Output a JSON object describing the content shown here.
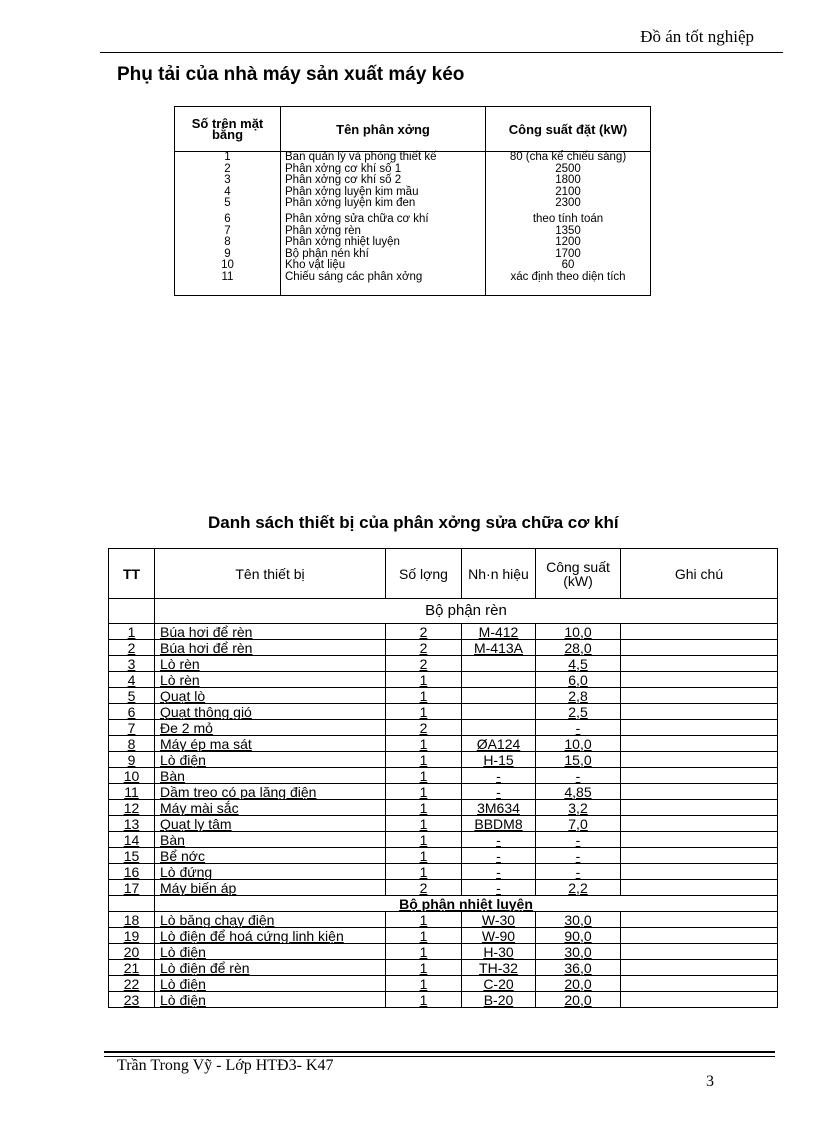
{
  "header": {
    "text": "Đồ án tốt nghiệp"
  },
  "section1": {
    "title": "Phụ tải của nhà máy sản xuất máy kéo",
    "columns": [
      "Số trên mặt bằng",
      "Tên phân xởng",
      "Công suất đặt (kW)"
    ],
    "rows": [
      [
        "1",
        "Ban quản lý và phòng thiết kế",
        "80 (cha kể chiếu sáng)"
      ],
      [
        "2",
        "Phân xởng cơ khí số 1",
        "2500"
      ],
      [
        "3",
        "Phân xởng cơ khí số 2",
        "1800"
      ],
      [
        "4",
        "Phân xởng luyện kim mầu",
        "2100"
      ],
      [
        "5",
        "Phân xởng luyện kim đen",
        "2300"
      ],
      [
        "6",
        "Phân xởng sửa chữa cơ khí",
        "theo tính toán"
      ],
      [
        "7",
        "Phân xởng rèn",
        "1350"
      ],
      [
        "8",
        "Phân xởng nhiệt luyện",
        "1200"
      ],
      [
        "9",
        "Bộ phận nén khí",
        "1700"
      ],
      [
        "10",
        "Kho vật liệu",
        "60"
      ],
      [
        "11",
        "Chiếu sáng các phân xởng",
        "xác định theo diện tích"
      ]
    ]
  },
  "section2": {
    "title": "Danh sách thiết bị của phân xởng sửa chữa cơ khí",
    "columns": [
      "TT",
      "Tên thiết bị",
      "Số lợng",
      "Nh·n hiệu",
      "Công suất (kW)",
      "Ghi chú"
    ],
    "groups": [
      {
        "name": "Bộ phận rèn",
        "rows": [
          [
            "1",
            "Búa hơi để rèn",
            "2",
            "M-412",
            "10,0",
            ""
          ],
          [
            "2",
            "Búa hơi để rèn",
            "2",
            "M-413A",
            "28,0",
            ""
          ],
          [
            "3",
            "Lò rèn",
            "2",
            "",
            "4,5",
            ""
          ],
          [
            "4",
            "Lò rèn",
            "1",
            "",
            "6,0",
            ""
          ],
          [
            "5",
            "Quạt lò",
            "1",
            "",
            "2,8",
            ""
          ],
          [
            "6",
            "Quạt thông gió",
            "1",
            "",
            "2,5",
            ""
          ],
          [
            "7",
            "Đe 2 mỏ",
            "2",
            "",
            "-",
            ""
          ],
          [
            "8",
            "Máy ép ma sát",
            "1",
            "ØA124",
            "10,0",
            ""
          ],
          [
            "9",
            "Lò điện",
            "1",
            "H-15",
            "15,0",
            ""
          ],
          [
            "10",
            "Bàn",
            "1",
            "-",
            "-",
            ""
          ],
          [
            "11",
            "Dầm treo có pa lăng điện",
            "1",
            "-",
            "4,85",
            ""
          ],
          [
            "12",
            "Máy mài sắc",
            "1",
            "3M634",
            "3,2",
            ""
          ],
          [
            "13",
            "Quạt ly tâm",
            "1",
            "BBDM8",
            "7,0",
            ""
          ],
          [
            "14",
            "Bàn",
            "1",
            "-",
            "-",
            ""
          ],
          [
            "15",
            "Bể nớc",
            "1",
            "-",
            "-",
            ""
          ],
          [
            "16",
            "Lò đứng",
            "1",
            "-",
            "-",
            ""
          ],
          [
            "17",
            "Máy biến áp",
            "2",
            "-",
            "2,2",
            ""
          ]
        ]
      },
      {
        "name": "Bộ phận nhiệt luyện",
        "rows": [
          [
            "18",
            "Lò băng chạy điện",
            "1",
            "W-30",
            "30,0",
            ""
          ],
          [
            "19",
            "Lò điện để hoá cứng linh kiện",
            "1",
            "W-90",
            "90,0",
            ""
          ],
          [
            "20",
            "Lò điện",
            "1",
            "H-30",
            "30,0",
            ""
          ],
          [
            "21",
            "Lò điện để rèn",
            "1",
            "TH-32",
            "36,0",
            ""
          ],
          [
            "22",
            "Lò điện",
            "1",
            "C-20",
            "20,0",
            ""
          ],
          [
            "23",
            "Lò điện",
            "1",
            "B-20",
            "20,0",
            ""
          ]
        ]
      }
    ]
  },
  "footer": {
    "author": "Trần Trong Vỹ - Lớp HTĐ3- K47",
    "page": "3"
  }
}
